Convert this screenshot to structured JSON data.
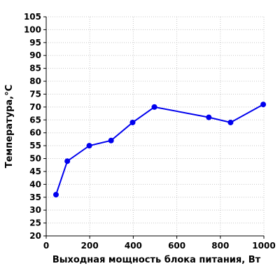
{
  "chart_data": {
    "type": "line",
    "title": "",
    "xlabel": "Выходная мощность блока питания, Вт",
    "ylabel": "Температура,°С",
    "xlim": [
      0,
      1000
    ],
    "ylim": [
      20,
      105
    ],
    "x_ticks": [
      0,
      200,
      400,
      600,
      800,
      1000
    ],
    "y_ticks": [
      20,
      25,
      30,
      35,
      40,
      45,
      50,
      55,
      60,
      65,
      70,
      75,
      80,
      85,
      90,
      95,
      100,
      105
    ],
    "grid": true,
    "legend": "none",
    "series": [
      {
        "color": "#0000ee",
        "x": [
          45,
          97,
          198,
          298,
          397,
          497,
          747,
          847,
          997
        ],
        "y": [
          36,
          49,
          55,
          57,
          64,
          70,
          66,
          64,
          71
        ]
      }
    ]
  }
}
